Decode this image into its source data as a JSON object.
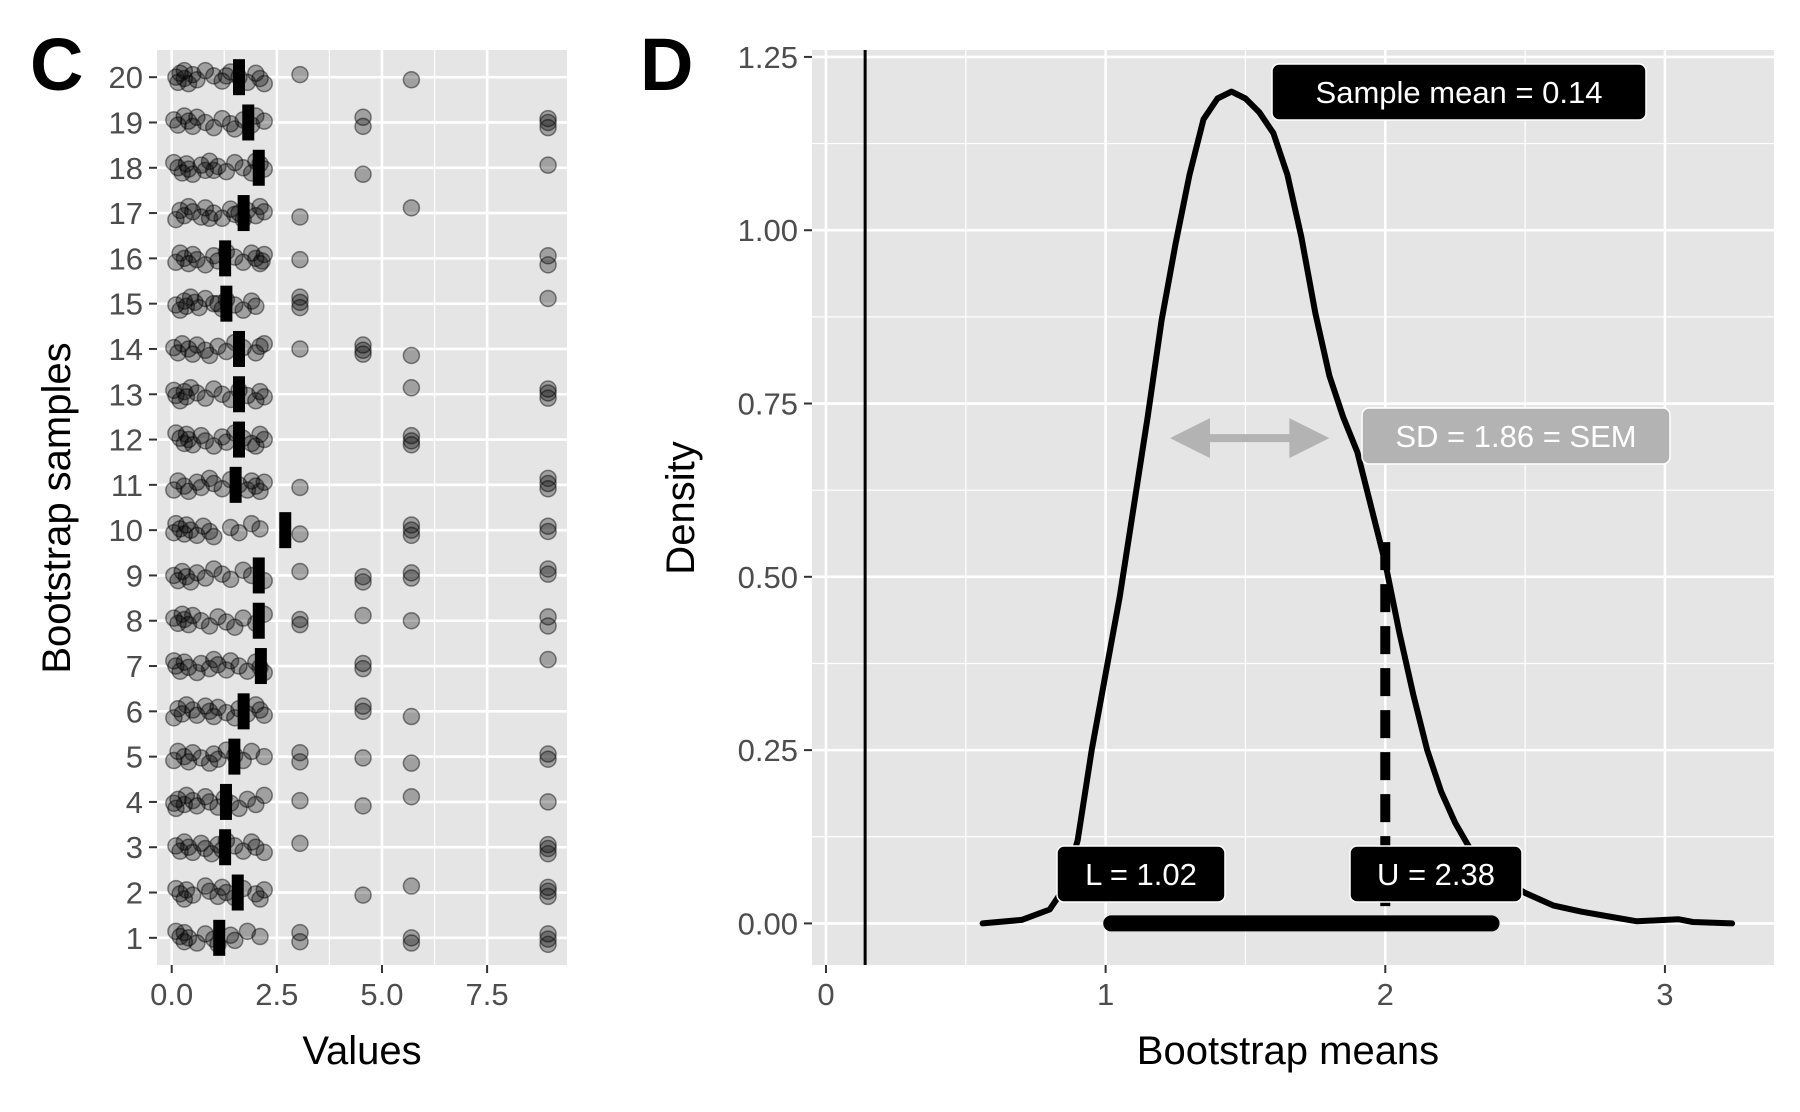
{
  "chart_data": [
    {
      "panel": "C",
      "type": "scatter",
      "xlabel": "Values",
      "ylabel": "Bootstrap samples",
      "x_ticks": [
        "0.0",
        "2.5",
        "5.0",
        "7.5"
      ],
      "x_tick_values": [
        0,
        2.5,
        5,
        7.5
      ],
      "xlim": [
        -0.35,
        9.4
      ],
      "y_ticks": [
        "1",
        "2",
        "3",
        "4",
        "5",
        "6",
        "7",
        "8",
        "9",
        "10",
        "11",
        "12",
        "13",
        "14",
        "15",
        "16",
        "17",
        "18",
        "19",
        "20"
      ],
      "ylim": [
        0.4,
        20.6
      ],
      "grid": true,
      "point_color": "#000000",
      "point_alpha": 0.3,
      "bootstrap_means": [
        1.13,
        1.57,
        1.27,
        1.29,
        1.49,
        1.71,
        2.12,
        2.07,
        2.07,
        2.7,
        1.52,
        1.6,
        1.6,
        1.6,
        1.3,
        1.27,
        1.71,
        2.07,
        1.82,
        1.6
      ],
      "samples": [
        {
          "sample": 1,
          "values": [
            0.1,
            0.2,
            0.3,
            0.3,
            0.4,
            0.6,
            0.8,
            1.0,
            1.1,
            1.4,
            1.5,
            1.8,
            2.1,
            3.05,
            3.05,
            5.7,
            5.7,
            8.95,
            8.95,
            8.95
          ]
        },
        {
          "sample": 2,
          "values": [
            0.1,
            0.2,
            0.3,
            0.35,
            0.5,
            0.8,
            0.9,
            1.1,
            1.2,
            1.3,
            1.5,
            1.7,
            2.0,
            2.1,
            2.2,
            4.55,
            5.7,
            8.95,
            8.95,
            8.95
          ]
        },
        {
          "sample": 3,
          "values": [
            0.1,
            0.2,
            0.3,
            0.4,
            0.5,
            0.7,
            0.8,
            0.95,
            1.1,
            1.2,
            1.3,
            1.5,
            1.7,
            1.9,
            2.0,
            2.2,
            3.05,
            8.95,
            8.95,
            8.95
          ]
        },
        {
          "sample": 4,
          "values": [
            0.05,
            0.1,
            0.15,
            0.3,
            0.35,
            0.5,
            0.6,
            0.8,
            0.9,
            1.1,
            1.25,
            1.4,
            1.6,
            1.8,
            2.0,
            2.2,
            3.05,
            4.55,
            5.7,
            8.95
          ]
        },
        {
          "sample": 5,
          "values": [
            0.05,
            0.15,
            0.3,
            0.4,
            0.5,
            0.7,
            0.9,
            1.0,
            1.1,
            1.3,
            1.5,
            1.7,
            1.9,
            2.2,
            3.05,
            3.05,
            4.55,
            5.7,
            8.95,
            8.95
          ]
        },
        {
          "sample": 6,
          "values": [
            0.05,
            0.15,
            0.25,
            0.35,
            0.5,
            0.6,
            0.8,
            0.9,
            1.0,
            1.1,
            1.3,
            1.5,
            1.6,
            1.8,
            2.0,
            2.1,
            2.2,
            4.55,
            4.55,
            5.7
          ]
        },
        {
          "sample": 7,
          "values": [
            0.05,
            0.1,
            0.2,
            0.3,
            0.4,
            0.6,
            0.7,
            0.9,
            1.0,
            1.1,
            1.3,
            1.4,
            1.6,
            1.8,
            2.0,
            2.1,
            2.2,
            4.55,
            4.55,
            8.95
          ]
        },
        {
          "sample": 8,
          "values": [
            0.05,
            0.15,
            0.25,
            0.3,
            0.4,
            0.5,
            0.7,
            0.9,
            1.1,
            1.3,
            1.5,
            1.7,
            2.0,
            2.2,
            3.05,
            3.05,
            4.55,
            5.7,
            8.95,
            8.95
          ]
        },
        {
          "sample": 9,
          "values": [
            0.05,
            0.15,
            0.25,
            0.35,
            0.45,
            0.6,
            0.8,
            1.0,
            1.2,
            1.4,
            1.7,
            1.9,
            2.2,
            3.05,
            4.55,
            4.55,
            5.7,
            5.7,
            8.95,
            8.95
          ]
        },
        {
          "sample": 10,
          "values": [
            0.05,
            0.1,
            0.2,
            0.3,
            0.35,
            0.45,
            0.6,
            0.75,
            0.9,
            1.0,
            1.4,
            1.6,
            1.9,
            2.1,
            3.05,
            5.7,
            5.7,
            5.7,
            8.95,
            8.95
          ]
        },
        {
          "sample": 11,
          "values": [
            0.05,
            0.15,
            0.3,
            0.4,
            0.6,
            0.7,
            0.9,
            1.0,
            1.2,
            1.4,
            1.6,
            1.8,
            1.9,
            2.0,
            2.1,
            2.2,
            3.05,
            8.95,
            8.95,
            8.95
          ]
        },
        {
          "sample": 12,
          "values": [
            0.1,
            0.2,
            0.3,
            0.35,
            0.4,
            0.5,
            0.7,
            0.8,
            1.0,
            1.2,
            1.3,
            1.5,
            1.7,
            1.9,
            2.1,
            2.2,
            5.7,
            5.7,
            5.7,
            2.0
          ]
        },
        {
          "sample": 13,
          "values": [
            0.05,
            0.1,
            0.2,
            0.3,
            0.35,
            0.45,
            0.6,
            0.8,
            1.0,
            1.2,
            1.4,
            1.6,
            1.8,
            2.0,
            2.1,
            2.2,
            5.7,
            8.95,
            8.95,
            8.95
          ]
        },
        {
          "sample": 14,
          "values": [
            0.05,
            0.15,
            0.25,
            0.4,
            0.5,
            0.6,
            0.8,
            0.9,
            1.1,
            1.3,
            1.5,
            1.7,
            2.0,
            2.2,
            3.05,
            4.55,
            4.55,
            4.55,
            5.7,
            2.1
          ]
        },
        {
          "sample": 15,
          "values": [
            0.1,
            0.2,
            0.3,
            0.35,
            0.45,
            0.55,
            0.65,
            0.8,
            1.0,
            1.2,
            1.3,
            1.5,
            1.7,
            1.9,
            2.0,
            3.05,
            3.05,
            3.05,
            8.95,
            1.1
          ]
        },
        {
          "sample": 16,
          "values": [
            0.1,
            0.2,
            0.3,
            0.4,
            0.5,
            0.6,
            0.8,
            1.0,
            1.1,
            1.3,
            1.5,
            1.7,
            1.9,
            2.0,
            2.1,
            2.2,
            3.05,
            8.95,
            8.95,
            2.15
          ]
        },
        {
          "sample": 17,
          "values": [
            0.1,
            0.2,
            0.3,
            0.4,
            0.5,
            0.7,
            0.8,
            1.0,
            1.2,
            1.4,
            1.5,
            1.7,
            1.8,
            2.0,
            2.1,
            2.2,
            3.05,
            5.7,
            1.6,
            0.9
          ]
        },
        {
          "sample": 18,
          "values": [
            0.05,
            0.15,
            0.25,
            0.35,
            0.4,
            0.5,
            0.7,
            0.8,
            0.9,
            1.1,
            1.3,
            1.5,
            1.7,
            1.9,
            2.1,
            2.2,
            4.55,
            8.95,
            1.0,
            2.0
          ]
        },
        {
          "sample": 19,
          "values": [
            0.05,
            0.15,
            0.3,
            0.4,
            0.5,
            0.6,
            0.8,
            1.0,
            1.2,
            1.4,
            1.5,
            1.7,
            1.9,
            2.0,
            2.2,
            4.55,
            4.55,
            8.95,
            8.95,
            8.95
          ]
        },
        {
          "sample": 20,
          "values": [
            0.1,
            0.15,
            0.2,
            0.3,
            0.4,
            0.5,
            0.6,
            0.8,
            1.0,
            1.2,
            1.4,
            1.6,
            1.8,
            2.0,
            2.1,
            2.2,
            3.05,
            5.7,
            0.3,
            1.3
          ]
        }
      ]
    },
    {
      "panel": "D",
      "type": "line",
      "xlabel": "Bootstrap means",
      "ylabel": "Density",
      "x_ticks": [
        "0",
        "1",
        "2",
        "3"
      ],
      "x_tick_values": [
        0,
        1,
        2,
        3
      ],
      "xlim": [
        -0.05,
        3.39
      ],
      "y_ticks": [
        "0.00",
        "0.25",
        "0.50",
        "0.75",
        "1.00",
        "1.25"
      ],
      "y_tick_values": [
        0,
        0.25,
        0.5,
        0.75,
        1.0,
        1.25
      ],
      "ylim": [
        -0.06,
        1.26
      ],
      "grid": true,
      "density": {
        "x": [
          0.56,
          0.7,
          0.8,
          0.85,
          0.9,
          0.95,
          1.0,
          1.05,
          1.1,
          1.15,
          1.2,
          1.25,
          1.3,
          1.35,
          1.4,
          1.45,
          1.5,
          1.55,
          1.6,
          1.65,
          1.7,
          1.75,
          1.8,
          1.85,
          1.9,
          1.95,
          2.0,
          2.05,
          2.1,
          2.15,
          2.2,
          2.25,
          2.3,
          2.35,
          2.4,
          2.5,
          2.6,
          2.7,
          2.8,
          2.9,
          3.0,
          3.05,
          3.1,
          3.24
        ],
        "y": [
          0.0,
          0.005,
          0.02,
          0.05,
          0.12,
          0.25,
          0.36,
          0.47,
          0.6,
          0.73,
          0.87,
          0.98,
          1.08,
          1.16,
          1.19,
          1.2,
          1.19,
          1.17,
          1.14,
          1.08,
          0.99,
          0.88,
          0.79,
          0.73,
          0.68,
          0.6,
          0.52,
          0.42,
          0.33,
          0.25,
          0.19,
          0.145,
          0.11,
          0.085,
          0.068,
          0.044,
          0.026,
          0.017,
          0.01,
          0.003,
          0.005,
          0.006,
          0.002,
          0.0
        ]
      },
      "sample_mean": 0.14,
      "sample_mean_label": "Sample mean =  0.14",
      "sd_arrow": {
        "from": 1.23,
        "to": 1.8,
        "y": 0.7
      },
      "sd_label": "SD = 1.86 = SEM",
      "upper_marker": {
        "x": 2.0,
        "y_top": 0.55
      },
      "ci": {
        "lower": 1.02,
        "upper": 2.38
      },
      "lower_label": "L =  1.02",
      "upper_label": "U =  2.38",
      "colors": {
        "panel_bg": "#e5e5e5",
        "grid": "#ffffff",
        "line": "#000000",
        "sd": "#b3b3b3"
      }
    }
  ],
  "panel_letters": {
    "left": "C",
    "right": "D"
  }
}
